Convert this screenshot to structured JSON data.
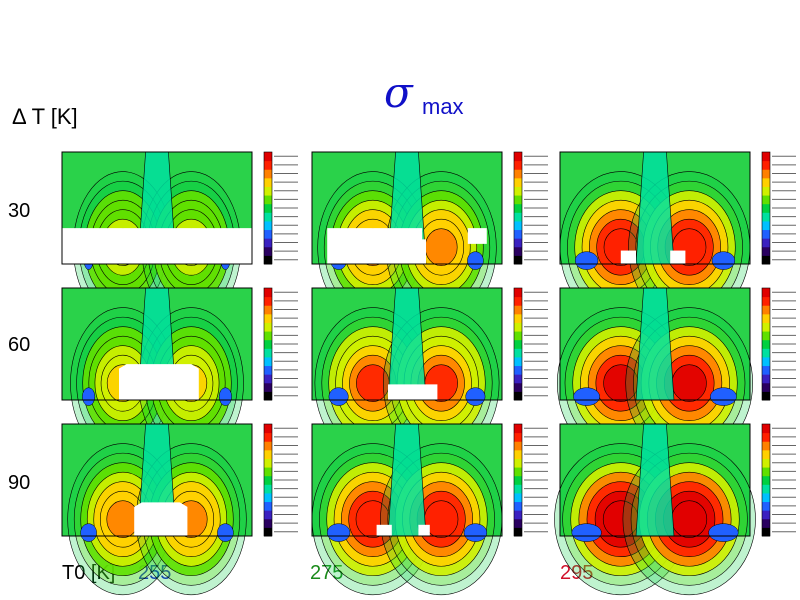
{
  "title": {
    "symbol": "σ",
    "subscript": "max"
  },
  "row_axis_label": "Δ T [K]",
  "rows": [
    "30",
    "60",
    "90"
  ],
  "col_axis_label": "T0 [K]",
  "cols": [
    {
      "label": "255",
      "color": "#1a1ad2"
    },
    {
      "label": "275",
      "color": "#1a8a1a"
    },
    {
      "label": "295",
      "color": "#d0102a"
    }
  ],
  "chart_data": {
    "type": "heatmap",
    "title": "σ max",
    "row_label": "Δ T [K]",
    "col_label": "T0 [K]",
    "row_values": [
      30,
      60,
      90
    ],
    "col_values": [
      255,
      275,
      295
    ],
    "colormap": [
      "#000000",
      "#2a0060",
      "#3a20c0",
      "#2060ff",
      "#00c0ff",
      "#00e0a0",
      "#00d040",
      "#60e000",
      "#d0f000",
      "#ffd000",
      "#ff8000",
      "#ff2000",
      "#e00000"
    ],
    "background_color": "#2ad24a",
    "mask_color": "#ffffff"
  }
}
